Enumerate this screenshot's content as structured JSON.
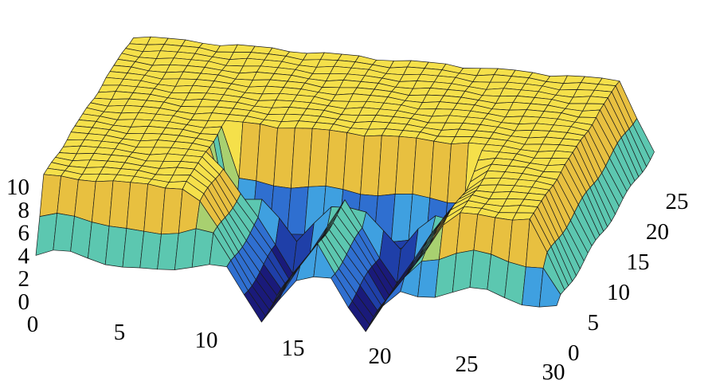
{
  "chart_data": {
    "type": "surface3d",
    "title": "",
    "xlabel": "",
    "ylabel": "",
    "zlabel": "",
    "xlim": [
      0,
      30
    ],
    "ylim": [
      0,
      25
    ],
    "zlim": [
      0,
      10
    ],
    "x_ticks": [
      "0",
      "5",
      "10",
      "15",
      "20",
      "25",
      "30"
    ],
    "y_ticks": [
      "0",
      "5",
      "10",
      "15",
      "20",
      "25"
    ],
    "z_ticks": [
      "0",
      "2",
      "4",
      "6",
      "8",
      "10"
    ],
    "grid_step": 1,
    "plateau_height": 10,
    "valleys": [
      {
        "axis": "x",
        "center": 13,
        "y_range": [
          0,
          8
        ],
        "depth": 10
      },
      {
        "axis": "x",
        "center": 19,
        "y_range": [
          0,
          8
        ],
        "depth": 10
      },
      {
        "axis": "y",
        "center": 10.5,
        "x_range": [
          10,
          21
        ],
        "depth": 9
      }
    ],
    "edge_dips": [
      {
        "side": "front",
        "height": 4
      },
      {
        "side": "right",
        "height": 4
      }
    ],
    "colormap": [
      "#1a1a7a",
      "#1f3fa8",
      "#2f6fd0",
      "#3fa0e0",
      "#5cc7b0",
      "#a8d070",
      "#e8c040",
      "#f5e04a"
    ],
    "grid": false
  }
}
